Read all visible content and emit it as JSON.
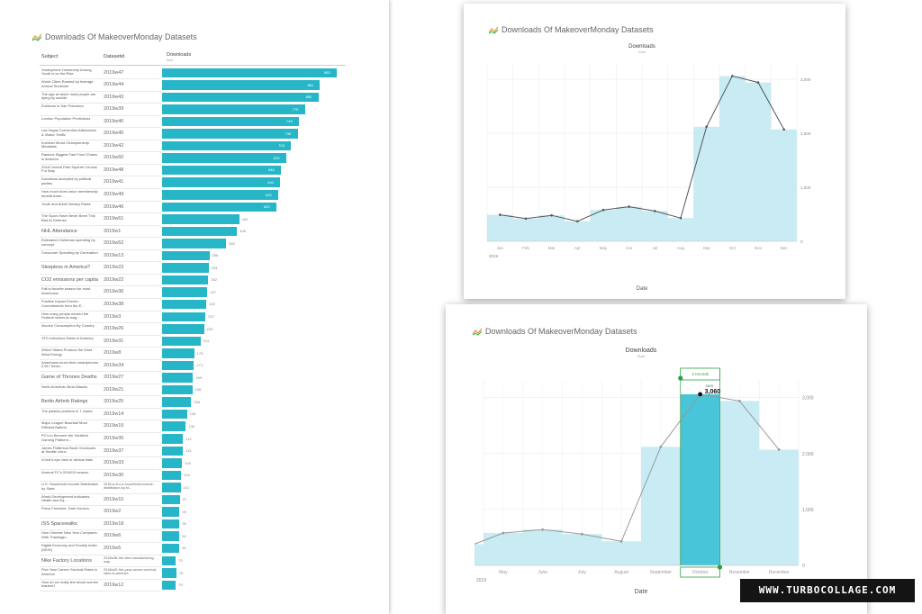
{
  "watermark": "WWW.TURBOCOLLAGE.COM",
  "colors": {
    "bar": "#27b6c8",
    "area": "#bfe8f1",
    "line": "#555555",
    "highlight": "#3ec2d6",
    "selection": "#2f9e44"
  },
  "icons": {
    "title": "sparkline-logo-icon"
  },
  "left_panel": {
    "title": "Downloads Of MakeoverMonday Datasets",
    "headers": {
      "subject": "Subject",
      "datasetid": "Datasetid",
      "downloads": "Downloads",
      "downloads_sub": "Sum"
    }
  },
  "top_panel": {
    "title": "Downloads Of MakeoverMonday Datasets"
  },
  "bottom_panel": {
    "title": "Downloads Of MakeoverMonday Datasets"
  },
  "chart_data": [
    {
      "type": "bar",
      "title": "Downloads Of MakeoverMonday Datasets",
      "columns": [
        "Subject",
        "Datasetid",
        "Downloads"
      ],
      "value_sublabel": "Sum",
      "rows": [
        {
          "subject": "Smartphone Ownership Among Youth is on the Rise",
          "id": "2019w47",
          "value": 952
        },
        {
          "subject": "World Cities Ranked by Average Annual Sunshine",
          "id": "2019w44",
          "value": 861
        },
        {
          "subject": "The age at which most people are dying by suicide",
          "id": "2019w43",
          "value": 852
        },
        {
          "subject": "Evictions in San Francisco",
          "id": "2019w39",
          "value": 779
        },
        {
          "subject": "London Population Predictions",
          "id": "2019w40",
          "value": 746
        },
        {
          "subject": "Las Vegas Convention Attendance & Visitor Traffic",
          "id": "2019w45",
          "value": 739
        },
        {
          "subject": "Ironman World Championship Medalists",
          "id": "2019w42",
          "value": 703
        },
        {
          "subject": "Ranked: Biggest Fast Food Chains in America",
          "id": "2019w50",
          "value": 676
        },
        {
          "subject": "2018 Central Park Squirrel Census Fur Map",
          "id": "2019w48",
          "value": 648
        },
        {
          "subject": "Donations accepted by political parties",
          "id": "2019w41",
          "value": 644
        },
        {
          "subject": "How much does union membership benefit Amer...",
          "id": "2019w49",
          "value": 633
        },
        {
          "subject": "Youth and Adult Literacy Rates",
          "id": "2019w46",
          "value": 623
        },
        {
          "subject": "The Spurs Have Never Been This Bad At Defense",
          "id": "2019w51",
          "value": 420
        },
        {
          "subject": "NHL Attendance",
          "id": "2019w1",
          "value": 408
        },
        {
          "subject": "Estimated Christmas spending by concept",
          "id": "2019w52",
          "value": 348
        },
        {
          "subject": "Consumer Spending by Generation",
          "id": "2019w13",
          "value": 258
        },
        {
          "subject": "Sleepless in America?",
          "id": "2019w23",
          "value": 254
        },
        {
          "subject": "CO2 emissions per capita",
          "id": "2019w22",
          "value": 252
        },
        {
          "subject": "Fall is favorite season for most Americans",
          "id": "2019w36",
          "value": 247
        },
        {
          "subject": "Positive Impact Events - Commitments from the E...",
          "id": "2019w38",
          "value": 242
        },
        {
          "subject": "How many people earned the Federal minimum wag...",
          "id": "2019w3",
          "value": 237
        },
        {
          "subject": "Alcohol Consumption By Country",
          "id": "2019w26",
          "value": 229
        },
        {
          "subject": "STD Infections Rates in America",
          "id": "2019w31",
          "value": 211
        },
        {
          "subject": "Which States Produce the Most Wind Energy",
          "id": "2019w8",
          "value": 175
        },
        {
          "subject": "Americans touch their smartphones 2,617 times...",
          "id": "2019w34",
          "value": 173
        },
        {
          "subject": "Game of Thrones Deaths",
          "id": "2019w27",
          "value": 169
        },
        {
          "subject": "North American Bear Attacks",
          "id": "2019w21",
          "value": 165
        },
        {
          "subject": "Berlin Airbnb Ratings",
          "id": "2019w25",
          "value": 158
        },
        {
          "subject": "The plastics problem in 7 charts",
          "id": "2019w14",
          "value": 135
        },
        {
          "subject": "Major League Baseball Most Efficient Batters",
          "id": "2019w19",
          "value": 130
        },
        {
          "subject": "PC's to Become the Smallest Gaming Platform...",
          "id": "2019w35",
          "value": 114
        },
        {
          "subject": "James Patterson Book Checkouts at Seattle Libra...",
          "id": "2019w37",
          "value": 113
        },
        {
          "subject": "A bird's-eye view of clinical trials",
          "id": "2019w33",
          "value": 109
        },
        {
          "subject": "Arsenal FC's 2018/19 season",
          "id": "2019w30",
          "value": 104
        },
        {
          "subject": "U.S. Household Income Distribution by State",
          "id": "2018-w-5-u-s-household-income-distribution-by-st...",
          "value": 101
        },
        {
          "subject": "World Development Indicators - Health and Eq...",
          "id": "2019w10",
          "value": 97
        },
        {
          "subject": "Press Freedom: Dark Horizon",
          "id": "2019w2",
          "value": 95
        },
        {
          "subject": "ISS Spacewalks",
          "id": "2019w18",
          "value": 95
        },
        {
          "subject": "How Chinese New Year Compares With Thanksgiv...",
          "id": "2019w6",
          "value": 94
        },
        {
          "subject": "Digital Economy and Society Index (DESI)",
          "id": "2019w5",
          "value": 94
        },
        {
          "subject": "Nike Factory Locations",
          "id": "2018w36-the-nike-manufacturing-map",
          "value": 75
        },
        {
          "subject": "Five-Year Cancer Survival Rates in America",
          "id": "2018w40-five-year-cancer-survival-rates-in-america",
          "value": 78
        },
        {
          "subject": "How do we really feel about women leaders?",
          "id": "2019w12",
          "value": 75
        }
      ]
    },
    {
      "type": "area",
      "title": "Downloads",
      "subtitle": "Sum",
      "xlabel": "Date",
      "year_label": "2019",
      "x": [
        "Jan",
        "Feb",
        "Mar",
        "Apr",
        "May",
        "Jun",
        "Jul",
        "Aug",
        "Sep",
        "Oct",
        "Nov",
        "Dec"
      ],
      "values": [
        490,
        420,
        480,
        370,
        580,
        640,
        560,
        430,
        2120,
        3060,
        2940,
        2070
      ],
      "ylim": [
        0,
        3300
      ],
      "yticks": [
        "0",
        "1,000",
        "2,000",
        "3,000"
      ],
      "grid": true
    },
    {
      "type": "area",
      "title": "Downloads",
      "subtitle": "Sum",
      "xlabel": "Date",
      "year_label": "2019",
      "x": [
        "May",
        "June",
        "July",
        "August",
        "September",
        "October",
        "November",
        "December"
      ],
      "values": [
        580,
        640,
        560,
        430,
        2120,
        3060,
        2940,
        2070
      ],
      "ylim": [
        0,
        3300
      ],
      "yticks": [
        "0",
        "1,000",
        "2,000",
        "3,000"
      ],
      "grid": true,
      "selected": {
        "category": "October",
        "tooltip_records": "4 records",
        "tooltip_label": "sum",
        "tooltip_value": "3,060"
      }
    }
  ]
}
